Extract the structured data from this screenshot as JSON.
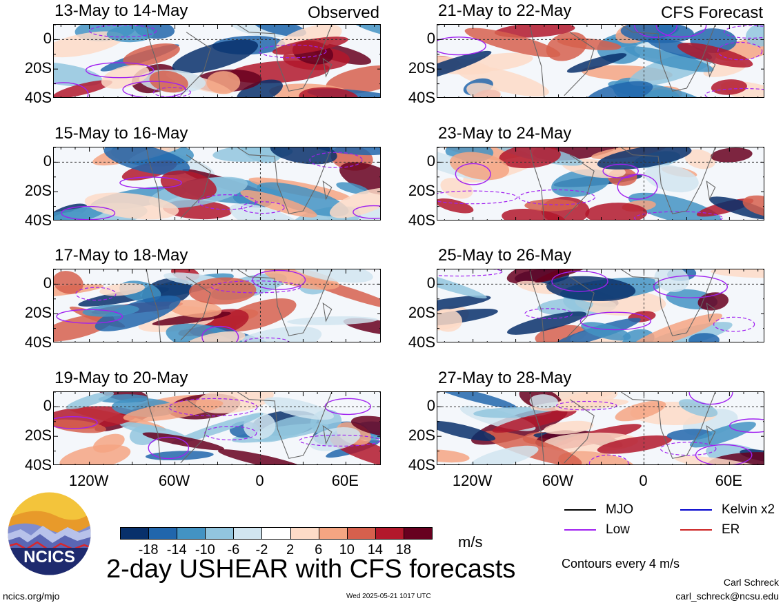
{
  "chart_data": {
    "type": "heatmap",
    "title": "2-day USHEAR with CFS forecasts",
    "units": "m/s",
    "x_tick_labels": [
      "120W",
      "60W",
      "0",
      "60E"
    ],
    "x_ticks_deg": [
      -120,
      -60,
      0,
      60
    ],
    "y_tick_labels": [
      "0",
      "20S",
      "40S"
    ],
    "y_ticks_deg": [
      0,
      -20,
      -40
    ],
    "lon_range": [
      -145,
      85
    ],
    "lat_range": [
      -40,
      10
    ],
    "colorbar": {
      "ticks": [
        "-18",
        "-14",
        "-10",
        "-6",
        "-2",
        "2",
        "6",
        "10",
        "14",
        "18"
      ],
      "colors": [
        "#08306b",
        "#2166ac",
        "#4393c3",
        "#92c5de",
        "#d1e5f0",
        "#ffffff",
        "#fddbc7",
        "#f4a582",
        "#d6604d",
        "#b2182b",
        "#67001f"
      ]
    },
    "panels": [
      {
        "period": "13-May to 14-May",
        "tag": "Observed",
        "source": "observed"
      },
      {
        "period": "15-May to 16-May",
        "tag": "",
        "source": "observed"
      },
      {
        "period": "17-May to 18-May",
        "tag": "",
        "source": "observed"
      },
      {
        "period": "19-May to 20-May",
        "tag": "",
        "source": "observed"
      },
      {
        "period": "21-May to 22-May",
        "tag": "CFS Forecast",
        "source": "forecast"
      },
      {
        "period": "23-May to 24-May",
        "tag": "",
        "source": "forecast"
      },
      {
        "period": "25-May to 26-May",
        "tag": "",
        "source": "forecast"
      },
      {
        "period": "27-May to 28-May",
        "tag": "",
        "source": "forecast"
      }
    ],
    "legend": [
      {
        "label": "MJO",
        "color": "#000000"
      },
      {
        "label": "Kelvin x2",
        "color": "#0000cc"
      },
      {
        "label": "Low",
        "color": "#a020f0"
      },
      {
        "label": "ER",
        "color": "#cc2222"
      }
    ],
    "contour_note": "Contours every 4 m/s"
  },
  "footer": {
    "logo_text": "NCICS",
    "url": "ncics.org/mjo",
    "timestamp": "Wed 2025-05-21 1017 UTC",
    "author": "Carl Schreck",
    "email": "carl_schreck@ncsu.edu"
  }
}
